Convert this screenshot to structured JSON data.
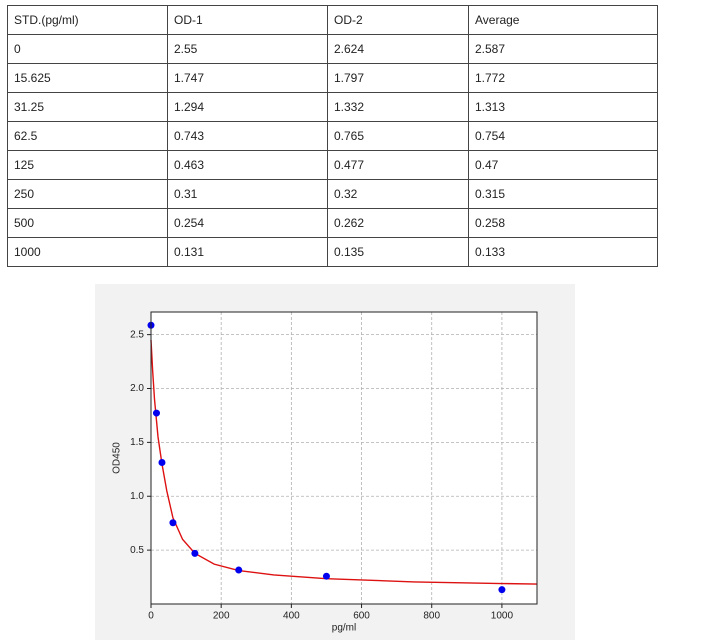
{
  "table": {
    "header": [
      "STD.(pg/ml)",
      "OD-1",
      "OD-2",
      "Average"
    ],
    "rows": [
      [
        "0",
        "2.55",
        "2.624",
        "2.587"
      ],
      [
        "15.625",
        "1.747",
        "1.797",
        "1.772"
      ],
      [
        "31.25",
        "1.294",
        "1.332",
        "1.313"
      ],
      [
        "62.5",
        "0.743",
        "0.765",
        "0.754"
      ],
      [
        "125",
        "0.463",
        "0.477",
        "0.47"
      ],
      [
        "250",
        "0.31",
        "0.32",
        "0.315"
      ],
      [
        "500",
        "0.254",
        "0.262",
        "0.258"
      ],
      [
        "1000",
        "0.131",
        "0.135",
        "0.133"
      ]
    ]
  },
  "chart_data": {
    "type": "scatter",
    "xlabel": "pg/ml",
    "ylabel": "OD450",
    "xlim": [
      0,
      1100
    ],
    "ylim": [
      0,
      2.71
    ],
    "xticks": [
      0,
      200,
      400,
      600,
      800,
      1000
    ],
    "yticks": [
      0.5,
      {
        "value": 1.0,
        "label": "1.0"
      },
      1.5,
      {
        "value": 2.0,
        "label": "2.0"
      },
      2.5
    ],
    "grid": true,
    "series": [
      {
        "type": "scatter",
        "color": "#0000ee",
        "x": [
          0,
          15.625,
          31.25,
          62.5,
          125,
          250,
          500,
          1000
        ],
        "values": [
          2.587,
          1.772,
          1.313,
          0.754,
          0.47,
          0.315,
          0.258,
          0.133
        ]
      },
      {
        "type": "line",
        "color": "#dd1111",
        "x": [
          0,
          5,
          10,
          20,
          31.25,
          45,
          62.5,
          90,
          125,
          180,
          250,
          350,
          500,
          750,
          1000,
          1100
        ],
        "values": [
          2.45,
          2.15,
          1.9,
          1.55,
          1.3,
          1.05,
          0.8,
          0.6,
          0.47,
          0.37,
          0.31,
          0.27,
          0.235,
          0.205,
          0.19,
          0.185
        ]
      }
    ]
  }
}
